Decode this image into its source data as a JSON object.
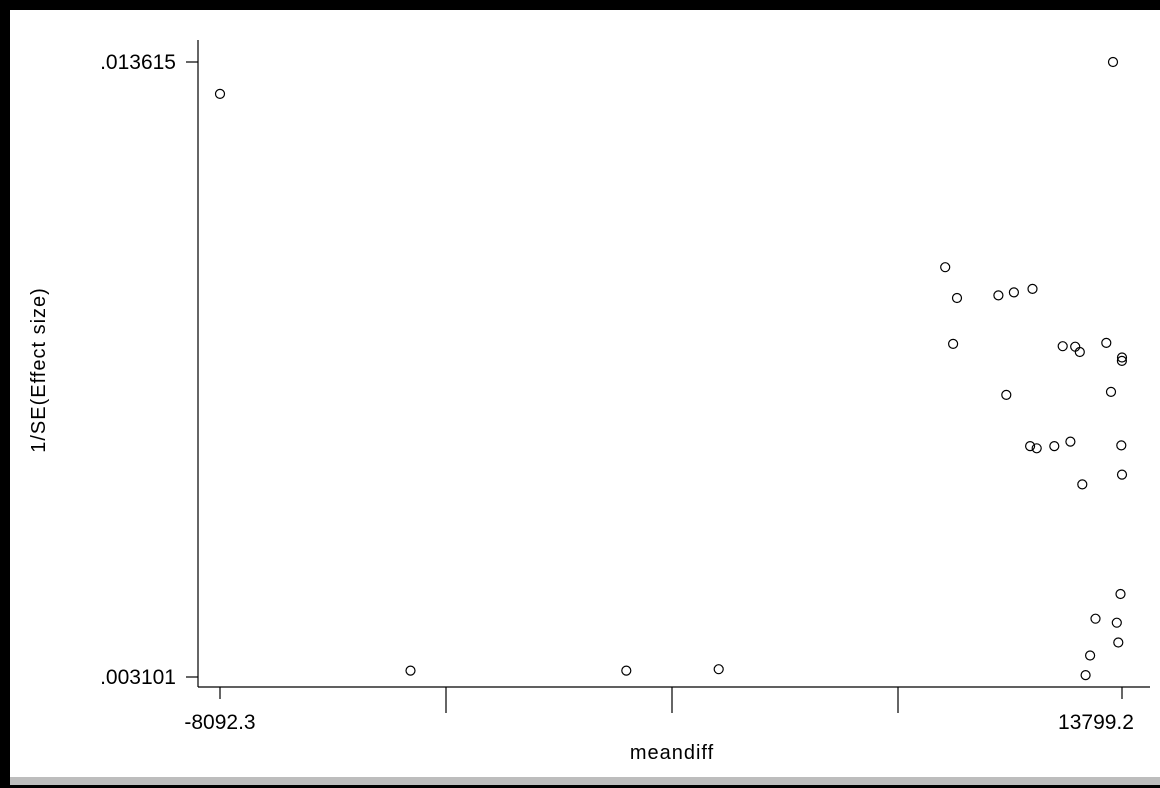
{
  "chart_data": {
    "type": "scatter",
    "title": "",
    "xlabel": "meandiff",
    "ylabel": "1/SE(Effect size)",
    "xlim": [
      -8092.3,
      13799.2
    ],
    "ylim": [
      0.003101,
      0.013615
    ],
    "x_tick_labels": [
      "-8092.3",
      "13799.2"
    ],
    "y_tick_labels": [
      ".003101",
      ".013615"
    ],
    "grid": false,
    "legend": "none",
    "marker_color": "#000000",
    "points": [
      {
        "x": -8092.3,
        "y": 0.013069
      },
      {
        "x": -3468.5,
        "y": 0.003211
      },
      {
        "x": 1769.4,
        "y": 0.003211
      },
      {
        "x": 4010.1,
        "y": 0.003235
      },
      {
        "x": 9795.3,
        "y": 0.009581
      },
      {
        "x": 9508.1,
        "y": 0.010107
      },
      {
        "x": 9699.6,
        "y": 0.008795
      },
      {
        "x": 10799.1,
        "y": 0.009624
      },
      {
        "x": 10991.3,
        "y": 0.007923
      },
      {
        "x": 11174.8,
        "y": 0.009676
      },
      {
        "x": 11568.3,
        "y": 0.007048
      },
      {
        "x": 11626.3,
        "y": 0.009736
      },
      {
        "x": 11729.0,
        "y": 0.007011
      },
      {
        "x": 12155.9,
        "y": 0.007048
      },
      {
        "x": 12359.1,
        "y": 0.008757
      },
      {
        "x": 12546.8,
        "y": 0.007125
      },
      {
        "x": 12663.6,
        "y": 0.008747
      },
      {
        "x": 12773.8,
        "y": 0.008658
      },
      {
        "x": 12836.8,
        "y": 0.006393
      },
      {
        "x": 12915.2,
        "y": 0.003134
      },
      {
        "x": 13024.3,
        "y": 0.003468
      },
      {
        "x": 13154.9,
        "y": 0.004097
      },
      {
        "x": 13418.9,
        "y": 0.008813
      },
      {
        "x": 13532.4,
        "y": 0.007975
      },
      {
        "x": 13580.0,
        "y": 0.013615
      },
      {
        "x": 13672.8,
        "y": 0.00403
      },
      {
        "x": 13710.5,
        "y": 0.00369
      },
      {
        "x": 13764.0,
        "y": 0.00452
      },
      {
        "x": 13782.1,
        "y": 0.00706
      },
      {
        "x": 13799.2,
        "y": 0.006561
      },
      {
        "x": 13796.0,
        "y": 0.008505
      },
      {
        "x": 13798.0,
        "y": 0.008563
      }
    ]
  }
}
